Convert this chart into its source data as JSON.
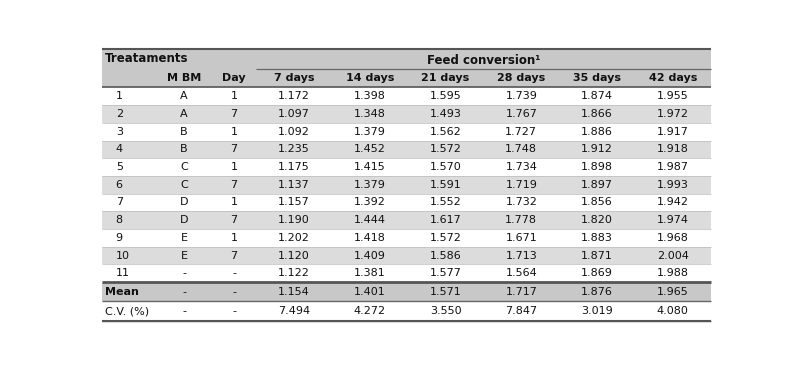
{
  "title_left": "Treataments",
  "title_right": "Feed conversion¹",
  "col_headers": [
    "M BM",
    "Day",
    "7 days",
    "14 days",
    "21 days",
    "28 days",
    "35 days",
    "42 days"
  ],
  "rows": [
    [
      "1",
      "A",
      "1",
      "1.172",
      "1.398",
      "1.595",
      "1.739",
      "1.874",
      "1.955"
    ],
    [
      "2",
      "A",
      "7",
      "1.097",
      "1.348",
      "1.493",
      "1.767",
      "1.866",
      "1.972"
    ],
    [
      "3",
      "B",
      "1",
      "1.092",
      "1.379",
      "1.562",
      "1.727",
      "1.886",
      "1.917"
    ],
    [
      "4",
      "B",
      "7",
      "1.235",
      "1.452",
      "1.572",
      "1.748",
      "1.912",
      "1.918"
    ],
    [
      "5",
      "C",
      "1",
      "1.175",
      "1.415",
      "1.570",
      "1.734",
      "1.898",
      "1.987"
    ],
    [
      "6",
      "C",
      "7",
      "1.137",
      "1.379",
      "1.591",
      "1.719",
      "1.897",
      "1.993"
    ],
    [
      "7",
      "D",
      "1",
      "1.157",
      "1.392",
      "1.552",
      "1.732",
      "1.856",
      "1.942"
    ],
    [
      "8",
      "D",
      "7",
      "1.190",
      "1.444",
      "1.617",
      "1.778",
      "1.820",
      "1.974"
    ],
    [
      "9",
      "E",
      "1",
      "1.202",
      "1.418",
      "1.572",
      "1.671",
      "1.883",
      "1.968"
    ],
    [
      "10",
      "E",
      "7",
      "1.120",
      "1.409",
      "1.586",
      "1.713",
      "1.871",
      "2.004"
    ],
    [
      "11",
      "-",
      "-",
      "1.122",
      "1.381",
      "1.577",
      "1.564",
      "1.869",
      "1.988"
    ]
  ],
  "footer_rows": [
    [
      "Mean",
      "-",
      "-",
      "1.154",
      "1.401",
      "1.571",
      "1.717",
      "1.876",
      "1.965"
    ],
    [
      "C.V. (%)",
      "-",
      "-",
      "7.494",
      "4.272",
      "3.550",
      "7.847",
      "3.019",
      "4.080"
    ]
  ],
  "header_bg": "#C8C8C8",
  "odd_row_bg": "#FFFFFF",
  "even_row_bg": "#DCDCDC",
  "footer_mean_bg": "#C8C8C8",
  "footer_cv_bg": "#FFFFFF",
  "line_color": "#888888",
  "thick_line_color": "#555555",
  "text_color": "#111111"
}
